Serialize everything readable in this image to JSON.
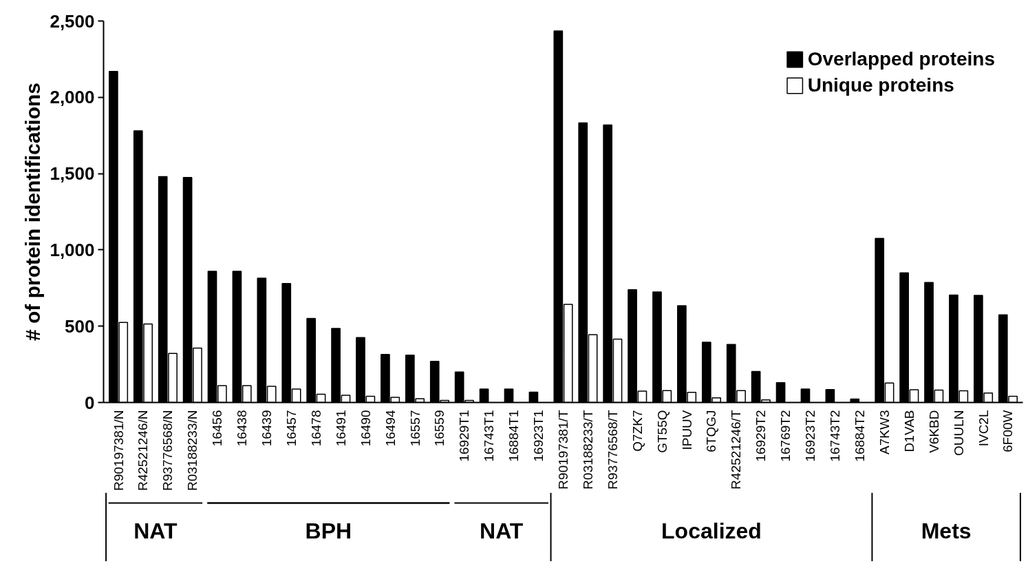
{
  "chart_data": {
    "type": "bar",
    "ylabel": "# of protein identifications",
    "categories": [
      "R90197381/N",
      "R42521246/N",
      "R93776568/N",
      "R03188233/N",
      "16456",
      "16438",
      "16439",
      "16457",
      "16478",
      "16491",
      "16490",
      "16494",
      "16557",
      "16559",
      "16929T1",
      "16743T1",
      "16884T1",
      "16923T1",
      "R90197381/T",
      "R03188233/T",
      "R93776568/T",
      "Q7ZK7",
      "GT55Q",
      "IPUUV",
      "6TQGJ",
      "R42521246/T",
      "16929T2",
      "16769T2",
      "16923T2",
      "16743T2",
      "16884T2",
      "A7KW3",
      "D1VAB",
      "V6KBD",
      "OUULN",
      "IVC2L",
      "6F00W"
    ],
    "series": [
      {
        "name": "Overlapped proteins",
        "color": "#000000",
        "values": [
          2170,
          1780,
          1480,
          1475,
          860,
          860,
          815,
          780,
          550,
          485,
          425,
          315,
          310,
          270,
          200,
          88,
          88,
          68,
          2435,
          1832,
          1819,
          739,
          724,
          634,
          395,
          380,
          203,
          130,
          88,
          85,
          23,
          1075,
          849,
          786,
          704,
          702,
          574
        ]
      },
      {
        "name": "Unique proteins",
        "color": "#ffffff",
        "values": [
          525,
          515,
          322,
          356,
          110,
          111,
          106,
          88,
          54,
          47,
          41,
          34,
          25,
          13,
          13,
          null,
          null,
          null,
          643,
          445,
          415,
          75,
          78,
          66,
          30,
          78,
          17,
          null,
          null,
          null,
          null,
          128,
          84,
          81,
          77,
          62,
          41
        ]
      }
    ],
    "ylim": [
      0,
      2500
    ],
    "yticks": [
      0,
      500,
      {
        "value": 1000,
        "label": "1,000"
      },
      {
        "value": 1500,
        "label": "1,500"
      },
      {
        "value": 2000,
        "label": "2,000"
      },
      {
        "value": 2500,
        "label": "2,500"
      }
    ],
    "grid": false,
    "legend": "top right",
    "annotations": [
      "NAT",
      "BPH",
      "NAT",
      "Localized",
      "Mets"
    ]
  }
}
